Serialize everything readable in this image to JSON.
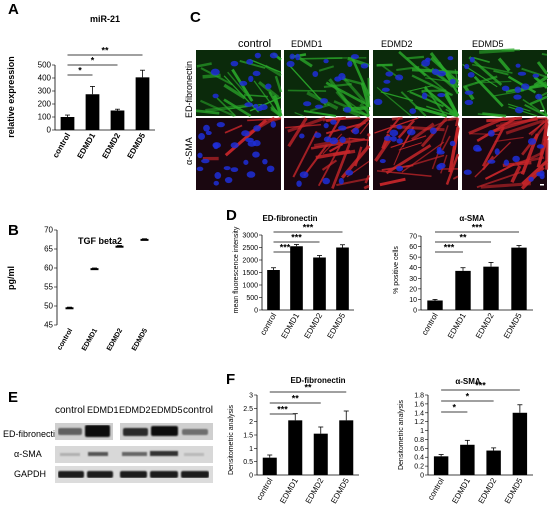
{
  "panel_labels": [
    "A",
    "B",
    "C",
    "D",
    "E",
    "F"
  ],
  "micro": {
    "columns": [
      "control",
      "EDMD1",
      "EDMD2",
      "EDMD5"
    ],
    "rows": [
      "ED-fibronectin",
      "α-SMA"
    ],
    "colors": {
      "fibronectin": "#2aa82a",
      "sma": "#c8262a",
      "nuclei": "#1e2ed8"
    }
  },
  "western": {
    "lanes": [
      "control",
      "EDMD1",
      "EDMD2",
      "EDMD5",
      "control"
    ],
    "rows": [
      "ED-fibronectin",
      "α-SMA",
      "GAPDH"
    ]
  },
  "chart_data": [
    {
      "panel": "A",
      "type": "bar",
      "title": "miR-21",
      "categories": [
        "control",
        "EDMD1",
        "EDMD2",
        "EDMD5"
      ],
      "values": [
        100,
        275,
        150,
        405
      ],
      "errors": [
        15,
        60,
        10,
        55
      ],
      "ylabel": "relative expression",
      "ylim": [
        0,
        500
      ],
      "yticks": [
        0,
        100,
        200,
        300,
        400,
        500
      ],
      "significance": [
        {
          "from": 0,
          "to": 3,
          "label": "**"
        },
        {
          "from": 0,
          "to": 2,
          "label": "*"
        },
        {
          "from": 0,
          "to": 1,
          "label": "*"
        }
      ]
    },
    {
      "panel": "B",
      "type": "scatter",
      "title": "TGF beta2",
      "categories": [
        "control",
        "EDMD1",
        "EDMD2",
        "EDMD5"
      ],
      "values": [
        49.4,
        59.7,
        65.6,
        67.4
      ],
      "errors": [
        0.3,
        0.3,
        0.3,
        0.3
      ],
      "ylabel": "pg/ml",
      "ylim": [
        45,
        70
      ],
      "yticks": [
        45,
        50,
        55,
        60,
        65,
        70
      ]
    },
    {
      "panel": "D",
      "type": "bar",
      "title": "ED-fibronectin",
      "categories": [
        "control",
        "EDMD1",
        "EDMD2",
        "EDMD5"
      ],
      "values": [
        1600,
        2550,
        2100,
        2500
      ],
      "errors": [
        90,
        70,
        80,
        110
      ],
      "ylabel": "mean fluorescence intensity",
      "ylim": [
        0,
        3000
      ],
      "yticks": [
        0,
        500,
        1000,
        1500,
        2000,
        2500,
        3000
      ],
      "significance": [
        {
          "from": 0,
          "to": 3,
          "label": "***"
        },
        {
          "from": 0,
          "to": 2,
          "label": "***"
        },
        {
          "from": 0,
          "to": 1,
          "label": "***"
        }
      ]
    },
    {
      "panel": "D",
      "type": "bar",
      "title": "α-SMA",
      "categories": [
        "control",
        "EDMD1",
        "EDMD2",
        "EDMD5"
      ],
      "values": [
        9,
        37,
        41,
        59
      ],
      "errors": [
        1,
        3,
        4,
        2
      ],
      "ylabel": "% positive cells",
      "ylim": [
        0,
        70
      ],
      "yticks": [
        0,
        10,
        20,
        30,
        40,
        50,
        60,
        70
      ],
      "significance": [
        {
          "from": 0,
          "to": 3,
          "label": "***"
        },
        {
          "from": 0,
          "to": 2,
          "label": "**"
        },
        {
          "from": 0,
          "to": 1,
          "label": "***"
        }
      ]
    },
    {
      "panel": "F",
      "type": "bar",
      "title": "ED-fibronectin",
      "categories": [
        "control",
        "EDMD1",
        "EDMD2",
        "EDMD5"
      ],
      "values": [
        0.65,
        2.05,
        1.55,
        2.05
      ],
      "errors": [
        0.1,
        0.25,
        0.25,
        0.35
      ],
      "ylabel": "Densitometric analysis",
      "ylim": [
        0,
        3
      ],
      "yticks": [
        0,
        0.5,
        1,
        1.5,
        2,
        2.5,
        3
      ],
      "significance": [
        {
          "from": 0,
          "to": 3,
          "label": "**"
        },
        {
          "from": 0,
          "to": 2,
          "label": "**"
        },
        {
          "from": 0,
          "to": 1,
          "label": "***"
        }
      ]
    },
    {
      "panel": "F",
      "type": "bar",
      "title": "α-SMA",
      "categories": [
        "control",
        "EDMD1",
        "EDMD2",
        "EDMD5"
      ],
      "values": [
        0.42,
        0.68,
        0.55,
        1.4
      ],
      "errors": [
        0.04,
        0.1,
        0.06,
        0.18
      ],
      "ylabel": "Densitometric analysis",
      "ylim": [
        0,
        1.8
      ],
      "yticks": [
        0,
        0.2,
        0.4,
        0.6,
        0.8,
        1,
        1.2,
        1.4,
        1.6,
        1.8
      ],
      "significance": [
        {
          "from": 0,
          "to": 3,
          "label": "***"
        },
        {
          "from": 0,
          "to": 2,
          "label": "*"
        },
        {
          "from": 0,
          "to": 1,
          "label": "*"
        }
      ]
    }
  ]
}
